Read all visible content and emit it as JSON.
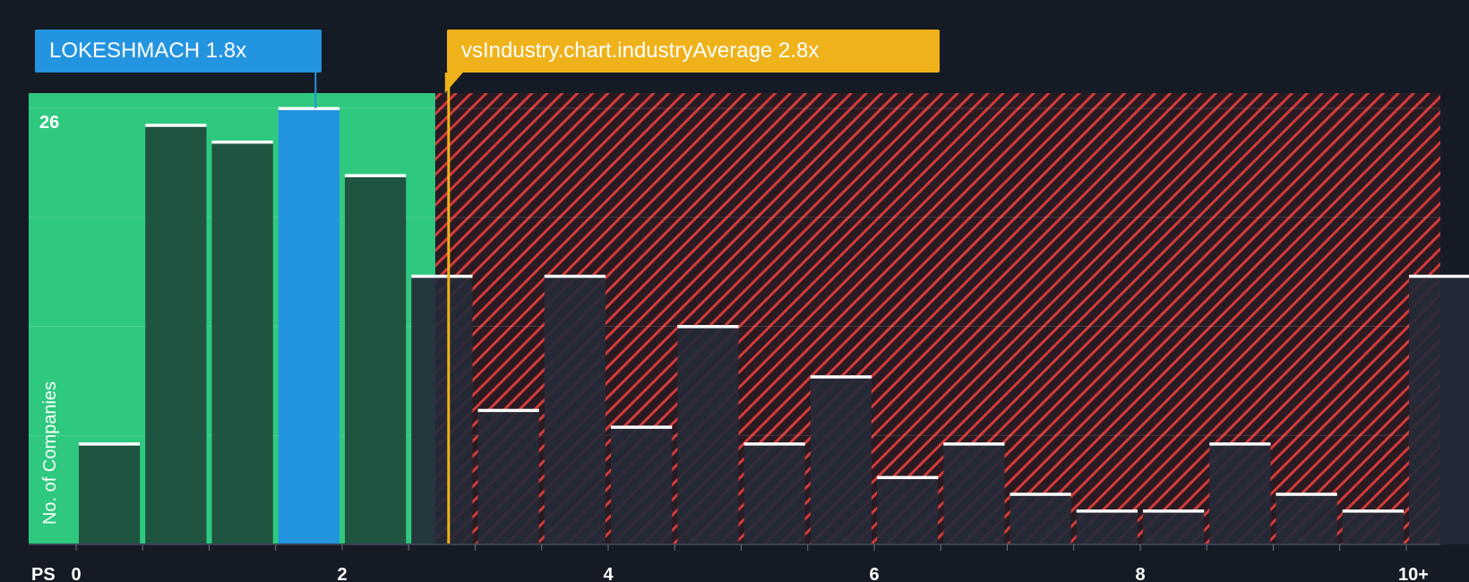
{
  "company_label": {
    "name": "LOKESHMACH",
    "value": "1.8x"
  },
  "industry_label": {
    "name": "vsIndustry.chart.industryAverage",
    "value": "2.8x"
  },
  "colors": {
    "background": "#151b24",
    "fair_zone": "#2ec97f",
    "bar_fair": "#1e4a3c",
    "bar_company": "#2394e0",
    "bar_over": "#252a38",
    "hatch": "#d33a3a",
    "company_accent": "#2394e0",
    "industry_accent": "#f0b21a"
  },
  "chart_data": {
    "type": "bar",
    "xlabel": "PS",
    "ylabel": "No. of Companies",
    "x_ticks": [
      "0",
      "2",
      "4",
      "6",
      "8",
      "10+"
    ],
    "y_max_label": "26",
    "ylim": [
      0,
      26
    ],
    "bin_width": 0.5,
    "bins": [
      {
        "start": 0.0,
        "value": 6
      },
      {
        "start": 0.5,
        "value": 25
      },
      {
        "start": 1.0,
        "value": 24
      },
      {
        "start": 1.5,
        "value": 26
      },
      {
        "start": 2.0,
        "value": 22
      },
      {
        "start": 2.5,
        "value": 16
      },
      {
        "start": 3.0,
        "value": 8
      },
      {
        "start": 3.5,
        "value": 16
      },
      {
        "start": 4.0,
        "value": 7
      },
      {
        "start": 4.5,
        "value": 13
      },
      {
        "start": 5.0,
        "value": 6
      },
      {
        "start": 5.5,
        "value": 10
      },
      {
        "start": 6.0,
        "value": 4
      },
      {
        "start": 6.5,
        "value": 6
      },
      {
        "start": 7.0,
        "value": 3
      },
      {
        "start": 7.5,
        "value": 2
      },
      {
        "start": 8.0,
        "value": 2
      },
      {
        "start": 8.5,
        "value": 6
      },
      {
        "start": 9.0,
        "value": 3
      },
      {
        "start": 9.5,
        "value": 2
      },
      {
        "start": 10.0,
        "value": 16
      }
    ],
    "company_value": 1.8,
    "company_bin_index": 3,
    "industry_average": 2.8,
    "fair_zone_end": 2.7,
    "grid": true
  }
}
